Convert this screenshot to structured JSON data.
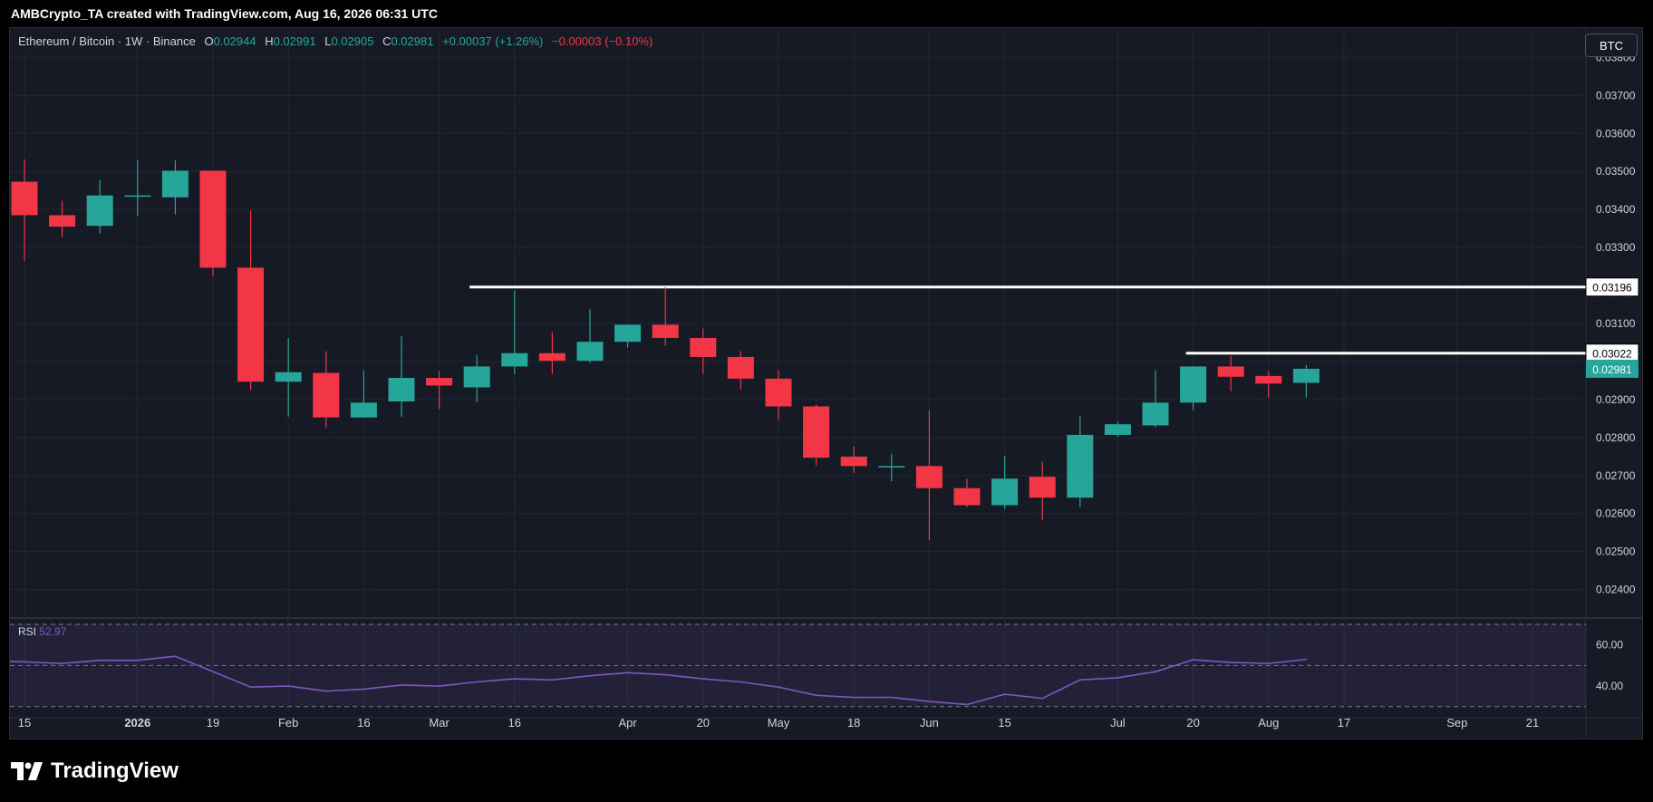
{
  "header": {
    "attribution": "AMBCrypto_TA created with TradingView.com, Aug 16, 2026 06:31 UTC"
  },
  "legend": {
    "symbol": "Ethereum / Bitcoin · 1W · Binance",
    "o_label": "O",
    "o_value": "0.02944",
    "h_label": "H",
    "h_value": "0.02991",
    "l_label": "L",
    "l_value": "0.02905",
    "c_label": "C",
    "c_value": "0.02981",
    "change": "+0.00037 (+1.26%)",
    "change2": "−0.00003 (−0.10%)"
  },
  "currency_button": "BTC",
  "rsi": {
    "label": "RSI",
    "value": "52.97"
  },
  "footer": {
    "brand": "TradingView"
  },
  "colors": {
    "up": "#26a69a",
    "down": "#f23645",
    "rsi_line": "#7e57c2",
    "level_line": "#ffffff",
    "background": "#161a25"
  },
  "chart_data": {
    "type": "candlestick",
    "interval": "1W",
    "price_axis": {
      "ticks": [
        0.024,
        0.025,
        0.026,
        0.027,
        0.028,
        0.029,
        0.03,
        0.031,
        0.033,
        0.034,
        0.035,
        0.036,
        0.037,
        0.038
      ],
      "labels": [
        "0.02400",
        "0.02500",
        "0.02600",
        "0.02700",
        "0.02800",
        "0.02900",
        "0.03000",
        "0.03100",
        "0.03300",
        "0.03400",
        "0.03500",
        "0.03600",
        "0.03700",
        "0.03800"
      ],
      "ylim": [
        0.0233,
        0.0382
      ]
    },
    "time_axis": {
      "labels": [
        "15",
        "2026",
        "19",
        "Feb",
        "16",
        "Mar",
        "16",
        "Apr",
        "20",
        "May",
        "18",
        "Jun",
        "15",
        "Jul",
        "20",
        "Aug",
        "17",
        "Sep",
        "21"
      ],
      "bar_index": [
        0,
        3,
        5,
        7,
        9,
        11,
        13,
        16,
        18,
        20,
        22,
        24,
        26,
        29,
        31,
        33,
        35,
        38,
        40
      ]
    },
    "candles": [
      {
        "o": 0.03473,
        "h": 0.03532,
        "l": 0.03265,
        "c": 0.03385
      },
      {
        "o": 0.03385,
        "h": 0.03423,
        "l": 0.03327,
        "c": 0.03355
      },
      {
        "o": 0.03357,
        "h": 0.03478,
        "l": 0.03337,
        "c": 0.03437
      },
      {
        "o": 0.03437,
        "h": 0.0353,
        "l": 0.03383,
        "c": 0.03437
      },
      {
        "o": 0.03432,
        "h": 0.0353,
        "l": 0.03387,
        "c": 0.03502
      },
      {
        "o": 0.03502,
        "h": 0.03502,
        "l": 0.03225,
        "c": 0.03247
      },
      {
        "o": 0.03247,
        "h": 0.03397,
        "l": 0.02925,
        "c": 0.02947
      },
      {
        "o": 0.02947,
        "h": 0.03062,
        "l": 0.02855,
        "c": 0.02972
      },
      {
        "o": 0.0297,
        "h": 0.03027,
        "l": 0.02825,
        "c": 0.02853
      },
      {
        "o": 0.02853,
        "h": 0.02977,
        "l": 0.02853,
        "c": 0.02892
      },
      {
        "o": 0.02895,
        "h": 0.03067,
        "l": 0.02855,
        "c": 0.02957
      },
      {
        "o": 0.02957,
        "h": 0.02975,
        "l": 0.02875,
        "c": 0.02937
      },
      {
        "o": 0.02932,
        "h": 0.03017,
        "l": 0.02893,
        "c": 0.02987
      },
      {
        "o": 0.02987,
        "h": 0.03187,
        "l": 0.02967,
        "c": 0.03022
      },
      {
        "o": 0.03022,
        "h": 0.03077,
        "l": 0.02967,
        "c": 0.03002
      },
      {
        "o": 0.03002,
        "h": 0.03137,
        "l": 0.02997,
        "c": 0.03052
      },
      {
        "o": 0.03052,
        "h": 0.03097,
        "l": 0.03037,
        "c": 0.03097
      },
      {
        "o": 0.03097,
        "h": 0.03196,
        "l": 0.03042,
        "c": 0.03062
      },
      {
        "o": 0.03062,
        "h": 0.03087,
        "l": 0.02967,
        "c": 0.03012
      },
      {
        "o": 0.03012,
        "h": 0.03027,
        "l": 0.02927,
        "c": 0.02955
      },
      {
        "o": 0.02955,
        "h": 0.02977,
        "l": 0.02847,
        "c": 0.02882
      },
      {
        "o": 0.02882,
        "h": 0.02887,
        "l": 0.02727,
        "c": 0.02747
      },
      {
        "o": 0.0275,
        "h": 0.02777,
        "l": 0.02707,
        "c": 0.02725
      },
      {
        "o": 0.02725,
        "h": 0.02757,
        "l": 0.02685,
        "c": 0.02725
      },
      {
        "o": 0.02725,
        "h": 0.02872,
        "l": 0.0253,
        "c": 0.02667
      },
      {
        "o": 0.02667,
        "h": 0.02692,
        "l": 0.02617,
        "c": 0.02622
      },
      {
        "o": 0.02622,
        "h": 0.02752,
        "l": 0.02612,
        "c": 0.02692
      },
      {
        "o": 0.02697,
        "h": 0.02737,
        "l": 0.02582,
        "c": 0.02642
      },
      {
        "o": 0.02642,
        "h": 0.02857,
        "l": 0.02617,
        "c": 0.02807
      },
      {
        "o": 0.02807,
        "h": 0.02842,
        "l": 0.02802,
        "c": 0.02835
      },
      {
        "o": 0.02832,
        "h": 0.02977,
        "l": 0.02827,
        "c": 0.02892
      },
      {
        "o": 0.02892,
        "h": 0.02987,
        "l": 0.02872,
        "c": 0.02987
      },
      {
        "o": 0.02987,
        "h": 0.03015,
        "l": 0.02922,
        "c": 0.0296
      },
      {
        "o": 0.02962,
        "h": 0.02975,
        "l": 0.02905,
        "c": 0.02942
      },
      {
        "o": 0.02944,
        "h": 0.02991,
        "l": 0.02905,
        "c": 0.02981
      }
    ],
    "levels": [
      {
        "price": 0.03196,
        "label": "0.03196",
        "from_bar": 12
      },
      {
        "price": 0.03022,
        "label": "0.03022",
        "from_bar": 31
      }
    ],
    "last_price": {
      "price": 0.02981,
      "label": "0.02981"
    },
    "rsi": {
      "ticks": [
        60,
        40
      ],
      "labels": [
        "60.00",
        "40.00"
      ],
      "band": [
        30,
        70
      ],
      "ylim": [
        29,
        70
      ],
      "values": [
        52.0,
        51.0,
        52.5,
        52.5,
        54.5,
        47.0,
        39.5,
        40.0,
        37.5,
        38.5,
        40.5,
        40.0,
        42.0,
        43.5,
        43.0,
        45.0,
        46.5,
        45.5,
        43.5,
        42.0,
        39.5,
        35.5,
        34.5,
        34.5,
        32.5,
        31.0,
        36.0,
        34.0,
        43.0,
        44.0,
        47.0,
        52.8,
        51.5,
        51.0,
        52.97
      ]
    }
  }
}
